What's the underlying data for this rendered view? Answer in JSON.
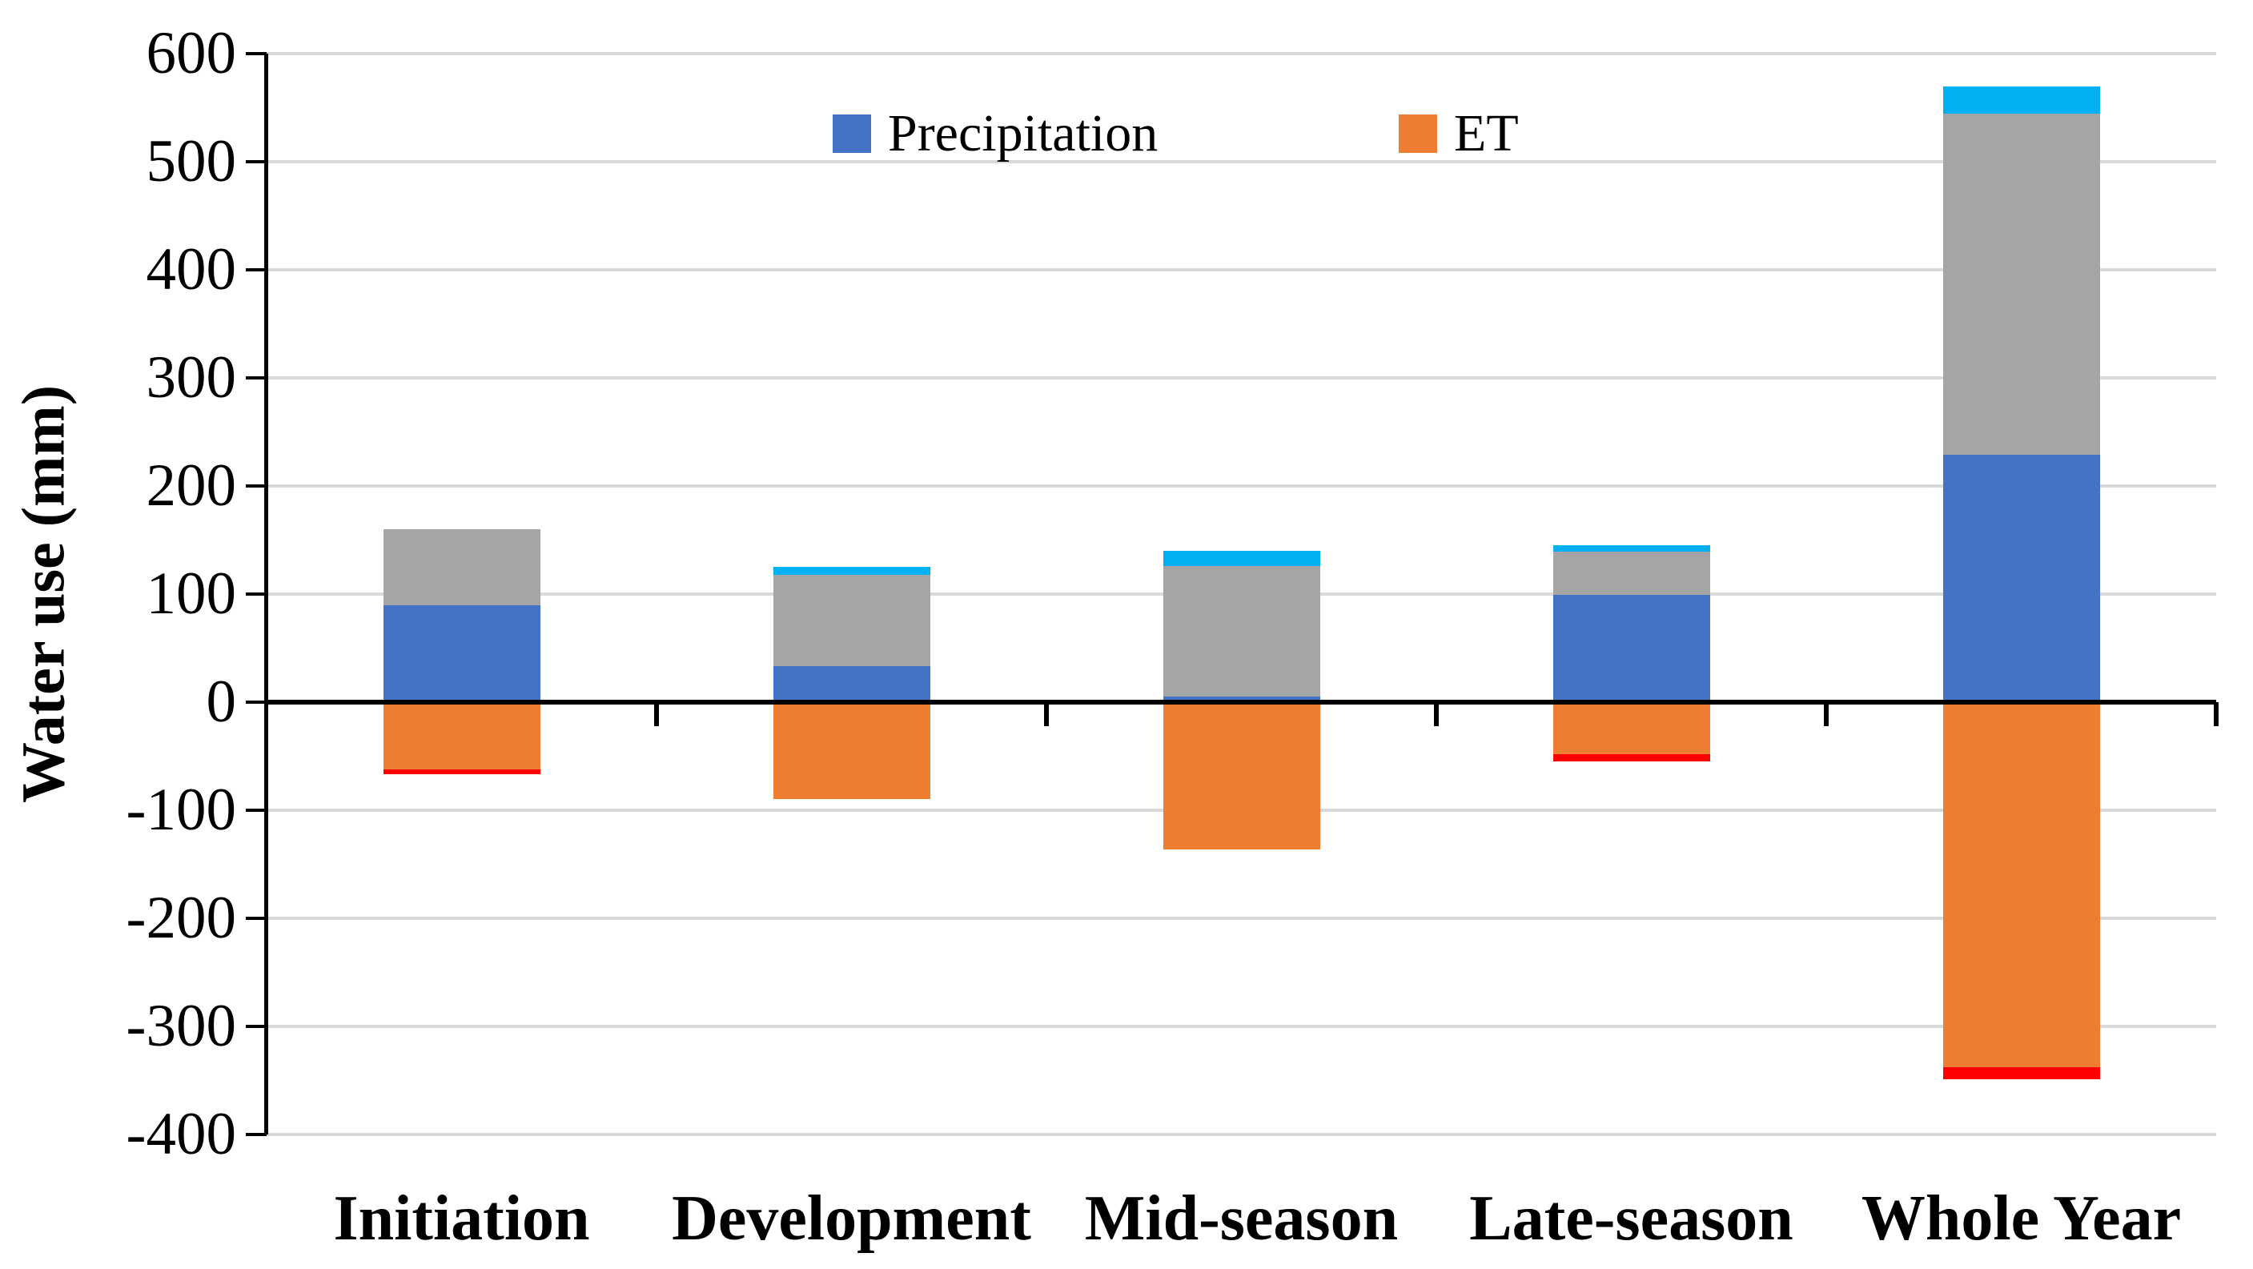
{
  "figure": {
    "background": "#FFFFFF",
    "axis_color": "#000000",
    "gridline_color": "#D9D9D9"
  },
  "chart_data": {
    "type": "bar",
    "stacked": true,
    "title": "",
    "xlabel": "",
    "ylabel": "Water use (mm)",
    "ylim": [
      -400,
      600
    ],
    "yticks": [
      600,
      500,
      400,
      300,
      200,
      100,
      0,
      -100,
      -200,
      -300,
      -400
    ],
    "grid": true,
    "legend": {
      "position": "top-center",
      "entries": [
        {
          "label": "Precipitation",
          "color": "#4472C4"
        },
        {
          "label": "ET",
          "color": "#ED7D31"
        }
      ]
    },
    "categories": [
      "Initiation",
      "Development",
      "Mid-season",
      "Late-season",
      "Whole Year"
    ],
    "series": [
      {
        "name": "Precipitation",
        "color": "#4472C4",
        "in_legend": true,
        "values": [
          90,
          33,
          5,
          99,
          229
        ]
      },
      {
        "name": "unlabeled-gray",
        "color": "#A5A5A5",
        "in_legend": false,
        "values": [
          70,
          85,
          121,
          40,
          316
        ]
      },
      {
        "name": "unlabeled-cyan",
        "color": "#00B0F0",
        "in_legend": false,
        "values": [
          0,
          7,
          14,
          6,
          25
        ]
      },
      {
        "name": "ET",
        "color": "#ED7D31",
        "in_legend": true,
        "values": [
          -62,
          -90,
          -136,
          -48,
          -338
        ]
      },
      {
        "name": "unlabeled-red",
        "color": "#FF0000",
        "in_legend": false,
        "values": [
          -5,
          0,
          0,
          -7,
          -11
        ]
      }
    ]
  }
}
